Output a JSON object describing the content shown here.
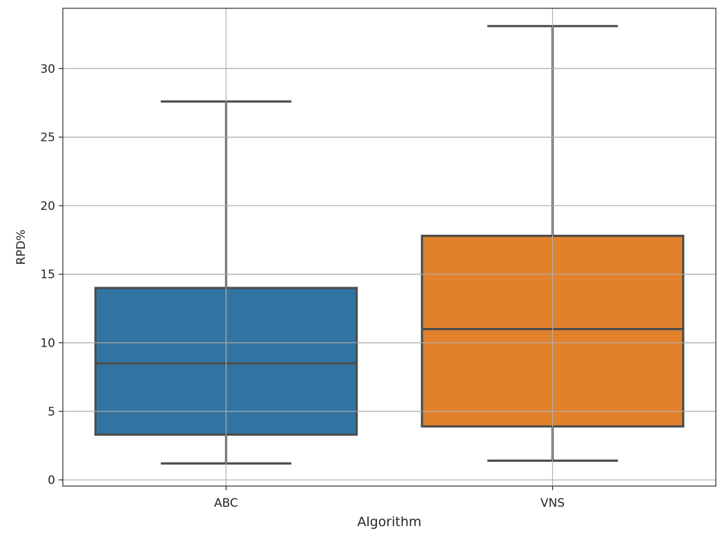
{
  "chart_data": {
    "type": "box",
    "title": "",
    "xlabel": "Algorithm",
    "ylabel": "RPD%",
    "ylim": [
      -0.45,
      34.4
    ],
    "grid": true,
    "yticks": [
      0,
      5,
      10,
      15,
      20,
      25,
      30
    ],
    "categories": [
      "ABC",
      "VNS"
    ],
    "boxes": [
      {
        "category": "ABC",
        "whisker_low": 1.2,
        "q1": 3.3,
        "median": 8.5,
        "q3": 14.0,
        "whisker_high": 27.6,
        "color": "#3274a1"
      },
      {
        "category": "VNS",
        "whisker_low": 1.4,
        "q1": 3.9,
        "median": 11.0,
        "q3": 17.8,
        "whisker_high": 33.1,
        "color": "#e1812c"
      }
    ]
  }
}
